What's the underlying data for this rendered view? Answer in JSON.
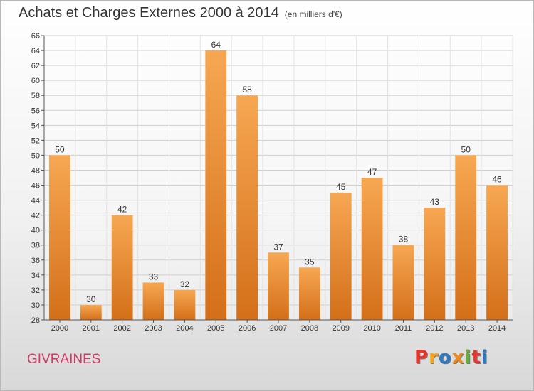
{
  "header": {
    "title": "Achats et Charges Externes 2000 à 2014",
    "subtitle": "(en milliers d'€)"
  },
  "footer": {
    "city": "GIVRAINES",
    "brand": "Proxiti"
  },
  "colors": {
    "bar_light": "#f7a752",
    "bar_dark": "#d46f19",
    "city": "#d13a64",
    "logo_letters": [
      "#e8352c",
      "#f6a51b",
      "#2f78c4",
      "#ef8a1d",
      "#61b331",
      "#e8352c",
      "#2f78c4"
    ]
  },
  "chart_data": {
    "type": "bar",
    "title": "Achats et Charges Externes 2000 à 2014",
    "subtitle": "(en milliers d'€)",
    "categories": [
      "2000",
      "2001",
      "2002",
      "2003",
      "2004",
      "2005",
      "2006",
      "2007",
      "2008",
      "2009",
      "2010",
      "2011",
      "2012",
      "2013",
      "2014"
    ],
    "values": [
      50,
      30,
      42,
      33,
      32,
      64,
      58,
      37,
      35,
      45,
      47,
      38,
      43,
      50,
      46
    ],
    "ylim": [
      28,
      66
    ],
    "yticks": [
      28,
      30,
      32,
      34,
      36,
      38,
      40,
      42,
      44,
      46,
      48,
      50,
      52,
      54,
      56,
      58,
      60,
      62,
      64,
      66
    ],
    "grid": true,
    "data_labels": true
  }
}
